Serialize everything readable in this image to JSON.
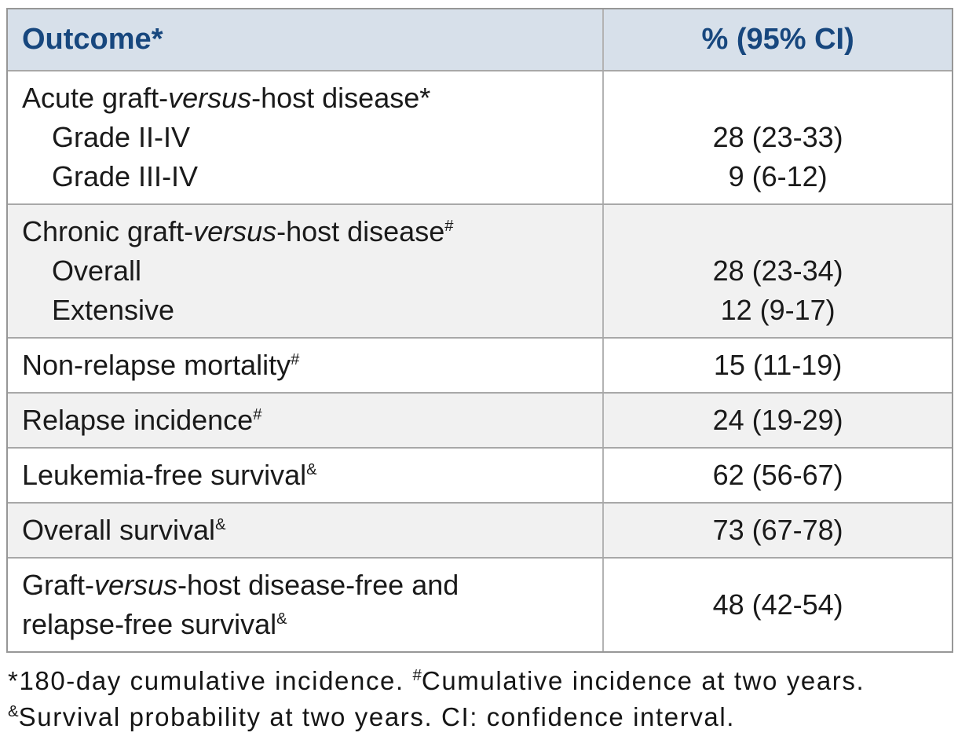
{
  "colors": {
    "header_bg": "#d7e0ea",
    "header_text": "#17477e",
    "shaded_row_bg": "#f1f1f1",
    "outer_border": "#979797",
    "inner_border": "#a8a8a8",
    "column_divider": "#b3b3b3",
    "body_text": "#1a1a1a"
  },
  "chart_data": {
    "type": "table",
    "title": "",
    "columns": [
      "Outcome*",
      "% (95% CI)"
    ],
    "rows": [
      {
        "outcome": "Acute graft-versus-host disease*",
        "value": ""
      },
      {
        "outcome": "Grade II-IV",
        "value": "28 (23-33)"
      },
      {
        "outcome": "Grade III-IV",
        "value": "9 (6-12)"
      },
      {
        "outcome": "Chronic graft-versus-host disease#",
        "value": ""
      },
      {
        "outcome": "Overall",
        "value": "28 (23-34)"
      },
      {
        "outcome": "Extensive",
        "value": "12 (9-17)"
      },
      {
        "outcome": "Non-relapse mortality#",
        "value": "15 (11-19)"
      },
      {
        "outcome": "Relapse incidence#",
        "value": "24 (19-29)"
      },
      {
        "outcome": "Leukemia-free survival&",
        "value": "62 (56-67)"
      },
      {
        "outcome": "Overall survival&",
        "value": "73 (67-78)"
      },
      {
        "outcome": "Graft-versus-host disease-free and relapse-free survival&",
        "value": "48 (42-54)"
      }
    ]
  },
  "table": {
    "header": {
      "outcome": "Outcome*",
      "value": "% (95% CI)"
    },
    "sections": [
      {
        "title": {
          "pre": "Acute graft-",
          "italic": "versus",
          "post": "-host disease*",
          "sup": ""
        },
        "rows": [
          {
            "label": "Grade II-IV",
            "value": "28 (23-33)"
          },
          {
            "label": "Grade III-IV",
            "value": "9 (6-12)"
          }
        ]
      },
      {
        "title": {
          "pre": "Chronic graft-",
          "italic": "versus",
          "post": "-host disease",
          "sup": "#"
        },
        "rows": [
          {
            "label": "Overall",
            "value": "28 (23-34)"
          },
          {
            "label": "Extensive",
            "value": "12 (9-17)"
          }
        ]
      },
      {
        "label": "Non-relapse mortality",
        "sup": "#",
        "value": "15 (11-19)"
      },
      {
        "label": "Relapse incidence",
        "sup": "#",
        "value": "24 (19-29)"
      },
      {
        "label": "Leukemia-free survival",
        "sup": "&",
        "value": "62 (56-67)"
      },
      {
        "label": "Overall survival",
        "sup": "&",
        "value": "73 (67-78)"
      },
      {
        "title": {
          "pre": "Graft-",
          "italic": "versus",
          "post": "-host disease-free and"
        },
        "line2": "relapse-free survival",
        "sup": "&",
        "value": "48 (42-54)"
      }
    ]
  },
  "footnote": {
    "star": "*",
    "part1": "180-day cumulative incidence. ",
    "sup_hash": "#",
    "part2": "Cumulative incidence at two years.",
    "sup_amp": "&",
    "part3": "Survival probability at two years. CI: confidence interval."
  }
}
